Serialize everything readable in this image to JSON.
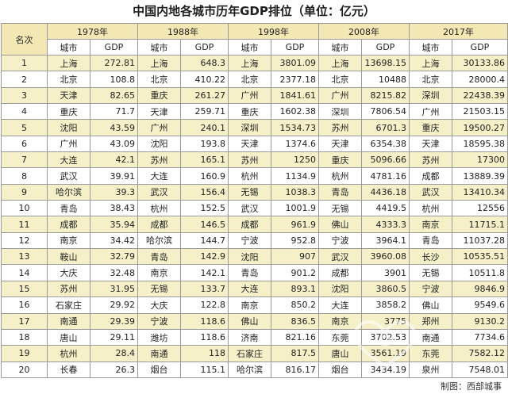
{
  "title": "中国内地各城市历年GDP排位（单位：亿元）",
  "rank_header": "名次",
  "city_header": "城市",
  "gdp_header": "GDP",
  "years": [
    "1978年",
    "1988年",
    "1998年",
    "2008年",
    "2017年"
  ],
  "rows": [
    {
      "rank": "1",
      "cells": [
        [
          "上海",
          "272.81"
        ],
        [
          "上海",
          "648.3"
        ],
        [
          "上海",
          "3801.09"
        ],
        [
          "上海",
          "13698.15"
        ],
        [
          "上海",
          "30133.86"
        ]
      ]
    },
    {
      "rank": "2",
      "cells": [
        [
          "北京",
          "108.8"
        ],
        [
          "北京",
          "410.22"
        ],
        [
          "北京",
          "2377.18"
        ],
        [
          "北京",
          "10488"
        ],
        [
          "北京",
          "28000.4"
        ]
      ]
    },
    {
      "rank": "3",
      "cells": [
        [
          "天津",
          "82.65"
        ],
        [
          "重庆",
          "261.27"
        ],
        [
          "广州",
          "1841.61"
        ],
        [
          "广州",
          "8215.82"
        ],
        [
          "深圳",
          "22438.39"
        ]
      ]
    },
    {
      "rank": "4",
      "cells": [
        [
          "重庆",
          "71.7"
        ],
        [
          "天津",
          "259.71"
        ],
        [
          "重庆",
          "1602.38"
        ],
        [
          "深圳",
          "7806.54"
        ],
        [
          "广州",
          "21503.15"
        ]
      ]
    },
    {
      "rank": "5",
      "cells": [
        [
          "沈阳",
          "43.59"
        ],
        [
          "广州",
          "240.1"
        ],
        [
          "深圳",
          "1534.73"
        ],
        [
          "苏州",
          "6701.3"
        ],
        [
          "重庆",
          "19500.27"
        ]
      ]
    },
    {
      "rank": "6",
      "cells": [
        [
          "广州",
          "43.09"
        ],
        [
          "沈阳",
          "193.8"
        ],
        [
          "天津",
          "1374.6"
        ],
        [
          "天津",
          "6354.38"
        ],
        [
          "天津",
          "18595.38"
        ]
      ]
    },
    {
      "rank": "7",
      "cells": [
        [
          "大连",
          "42.1"
        ],
        [
          "苏州",
          "165.1"
        ],
        [
          "苏州",
          "1250"
        ],
        [
          "重庆",
          "5096.66"
        ],
        [
          "苏州",
          "17300"
        ]
      ]
    },
    {
      "rank": "8",
      "cells": [
        [
          "武汉",
          "39.91"
        ],
        [
          "大连",
          "160.9"
        ],
        [
          "杭州",
          "1134.9"
        ],
        [
          "杭州",
          "4781.16"
        ],
        [
          "成都",
          "13889.39"
        ]
      ]
    },
    {
      "rank": "9",
      "cells": [
        [
          "哈尔滨",
          "39.3"
        ],
        [
          "武汉",
          "156.4"
        ],
        [
          "无锡",
          "1038.3"
        ],
        [
          "青岛",
          "4436.18"
        ],
        [
          "武汉",
          "13410.34"
        ]
      ]
    },
    {
      "rank": "10",
      "cells": [
        [
          "青岛",
          "38.43"
        ],
        [
          "杭州",
          "152.5"
        ],
        [
          "武汉",
          "1001.9"
        ],
        [
          "无锡",
          "4419.5"
        ],
        [
          "杭州",
          "12556"
        ]
      ]
    },
    {
      "rank": "11",
      "cells": [
        [
          "成都",
          "35.94"
        ],
        [
          "成都",
          "146.5"
        ],
        [
          "成都",
          "961.9"
        ],
        [
          "佛山",
          "4333.3"
        ],
        [
          "南京",
          "11715.1"
        ]
      ]
    },
    {
      "rank": "12",
      "cells": [
        [
          "南京",
          "34.42"
        ],
        [
          "哈尔滨",
          "144.7"
        ],
        [
          "宁波",
          "952.8"
        ],
        [
          "宁波",
          "3964.1"
        ],
        [
          "青岛",
          "11037.28"
        ]
      ]
    },
    {
      "rank": "13",
      "cells": [
        [
          "鞍山",
          "32.79"
        ],
        [
          "青岛",
          "142.9"
        ],
        [
          "沈阳",
          "907"
        ],
        [
          "武汉",
          "3960.08"
        ],
        [
          "长沙",
          "10535.51"
        ]
      ]
    },
    {
      "rank": "14",
      "cells": [
        [
          "大庆",
          "32.48"
        ],
        [
          "南京",
          "142.1"
        ],
        [
          "青岛",
          "901.2"
        ],
        [
          "成都",
          "3901"
        ],
        [
          "无锡",
          "10511.8"
        ]
      ]
    },
    {
      "rank": "15",
      "cells": [
        [
          "苏州",
          "31.95"
        ],
        [
          "无锡",
          "133.7"
        ],
        [
          "大连",
          "893.1"
        ],
        [
          "沈阳",
          "3860.5"
        ],
        [
          "宁波",
          "9846.9"
        ]
      ]
    },
    {
      "rank": "16",
      "cells": [
        [
          "石家庄",
          "29.92"
        ],
        [
          "大庆",
          "122.8"
        ],
        [
          "南京",
          "850.2"
        ],
        [
          "大连",
          "3858.2"
        ],
        [
          "佛山",
          "9549.6"
        ]
      ]
    },
    {
      "rank": "17",
      "cells": [
        [
          "南通",
          "29.39"
        ],
        [
          "宁波",
          "118.6"
        ],
        [
          "佛山",
          "836.5"
        ],
        [
          "南京",
          "3775"
        ],
        [
          "郑州",
          "9130.2"
        ]
      ]
    },
    {
      "rank": "18",
      "cells": [
        [
          "唐山",
          "29.11"
        ],
        [
          "潍坊",
          "118.6"
        ],
        [
          "济南",
          "821.16"
        ],
        [
          "东莞",
          "3702.53"
        ],
        [
          "南通",
          "7734.6"
        ]
      ]
    },
    {
      "rank": "19",
      "cells": [
        [
          "杭州",
          "28.4"
        ],
        [
          "南通",
          "118"
        ],
        [
          "石家庄",
          "817.5"
        ],
        [
          "唐山",
          "3561.19"
        ],
        [
          "东莞",
          "7582.12"
        ]
      ]
    },
    {
      "rank": "20",
      "cells": [
        [
          "长春",
          "26.3"
        ],
        [
          "烟台",
          "115.1"
        ],
        [
          "哈尔滨",
          "816.17"
        ],
        [
          "烟台",
          "3434.19"
        ],
        [
          "泉州",
          "7548.01"
        ]
      ]
    }
  ],
  "credit": "制图：西部城事",
  "watermark_icon": "heart-logo-icon"
}
